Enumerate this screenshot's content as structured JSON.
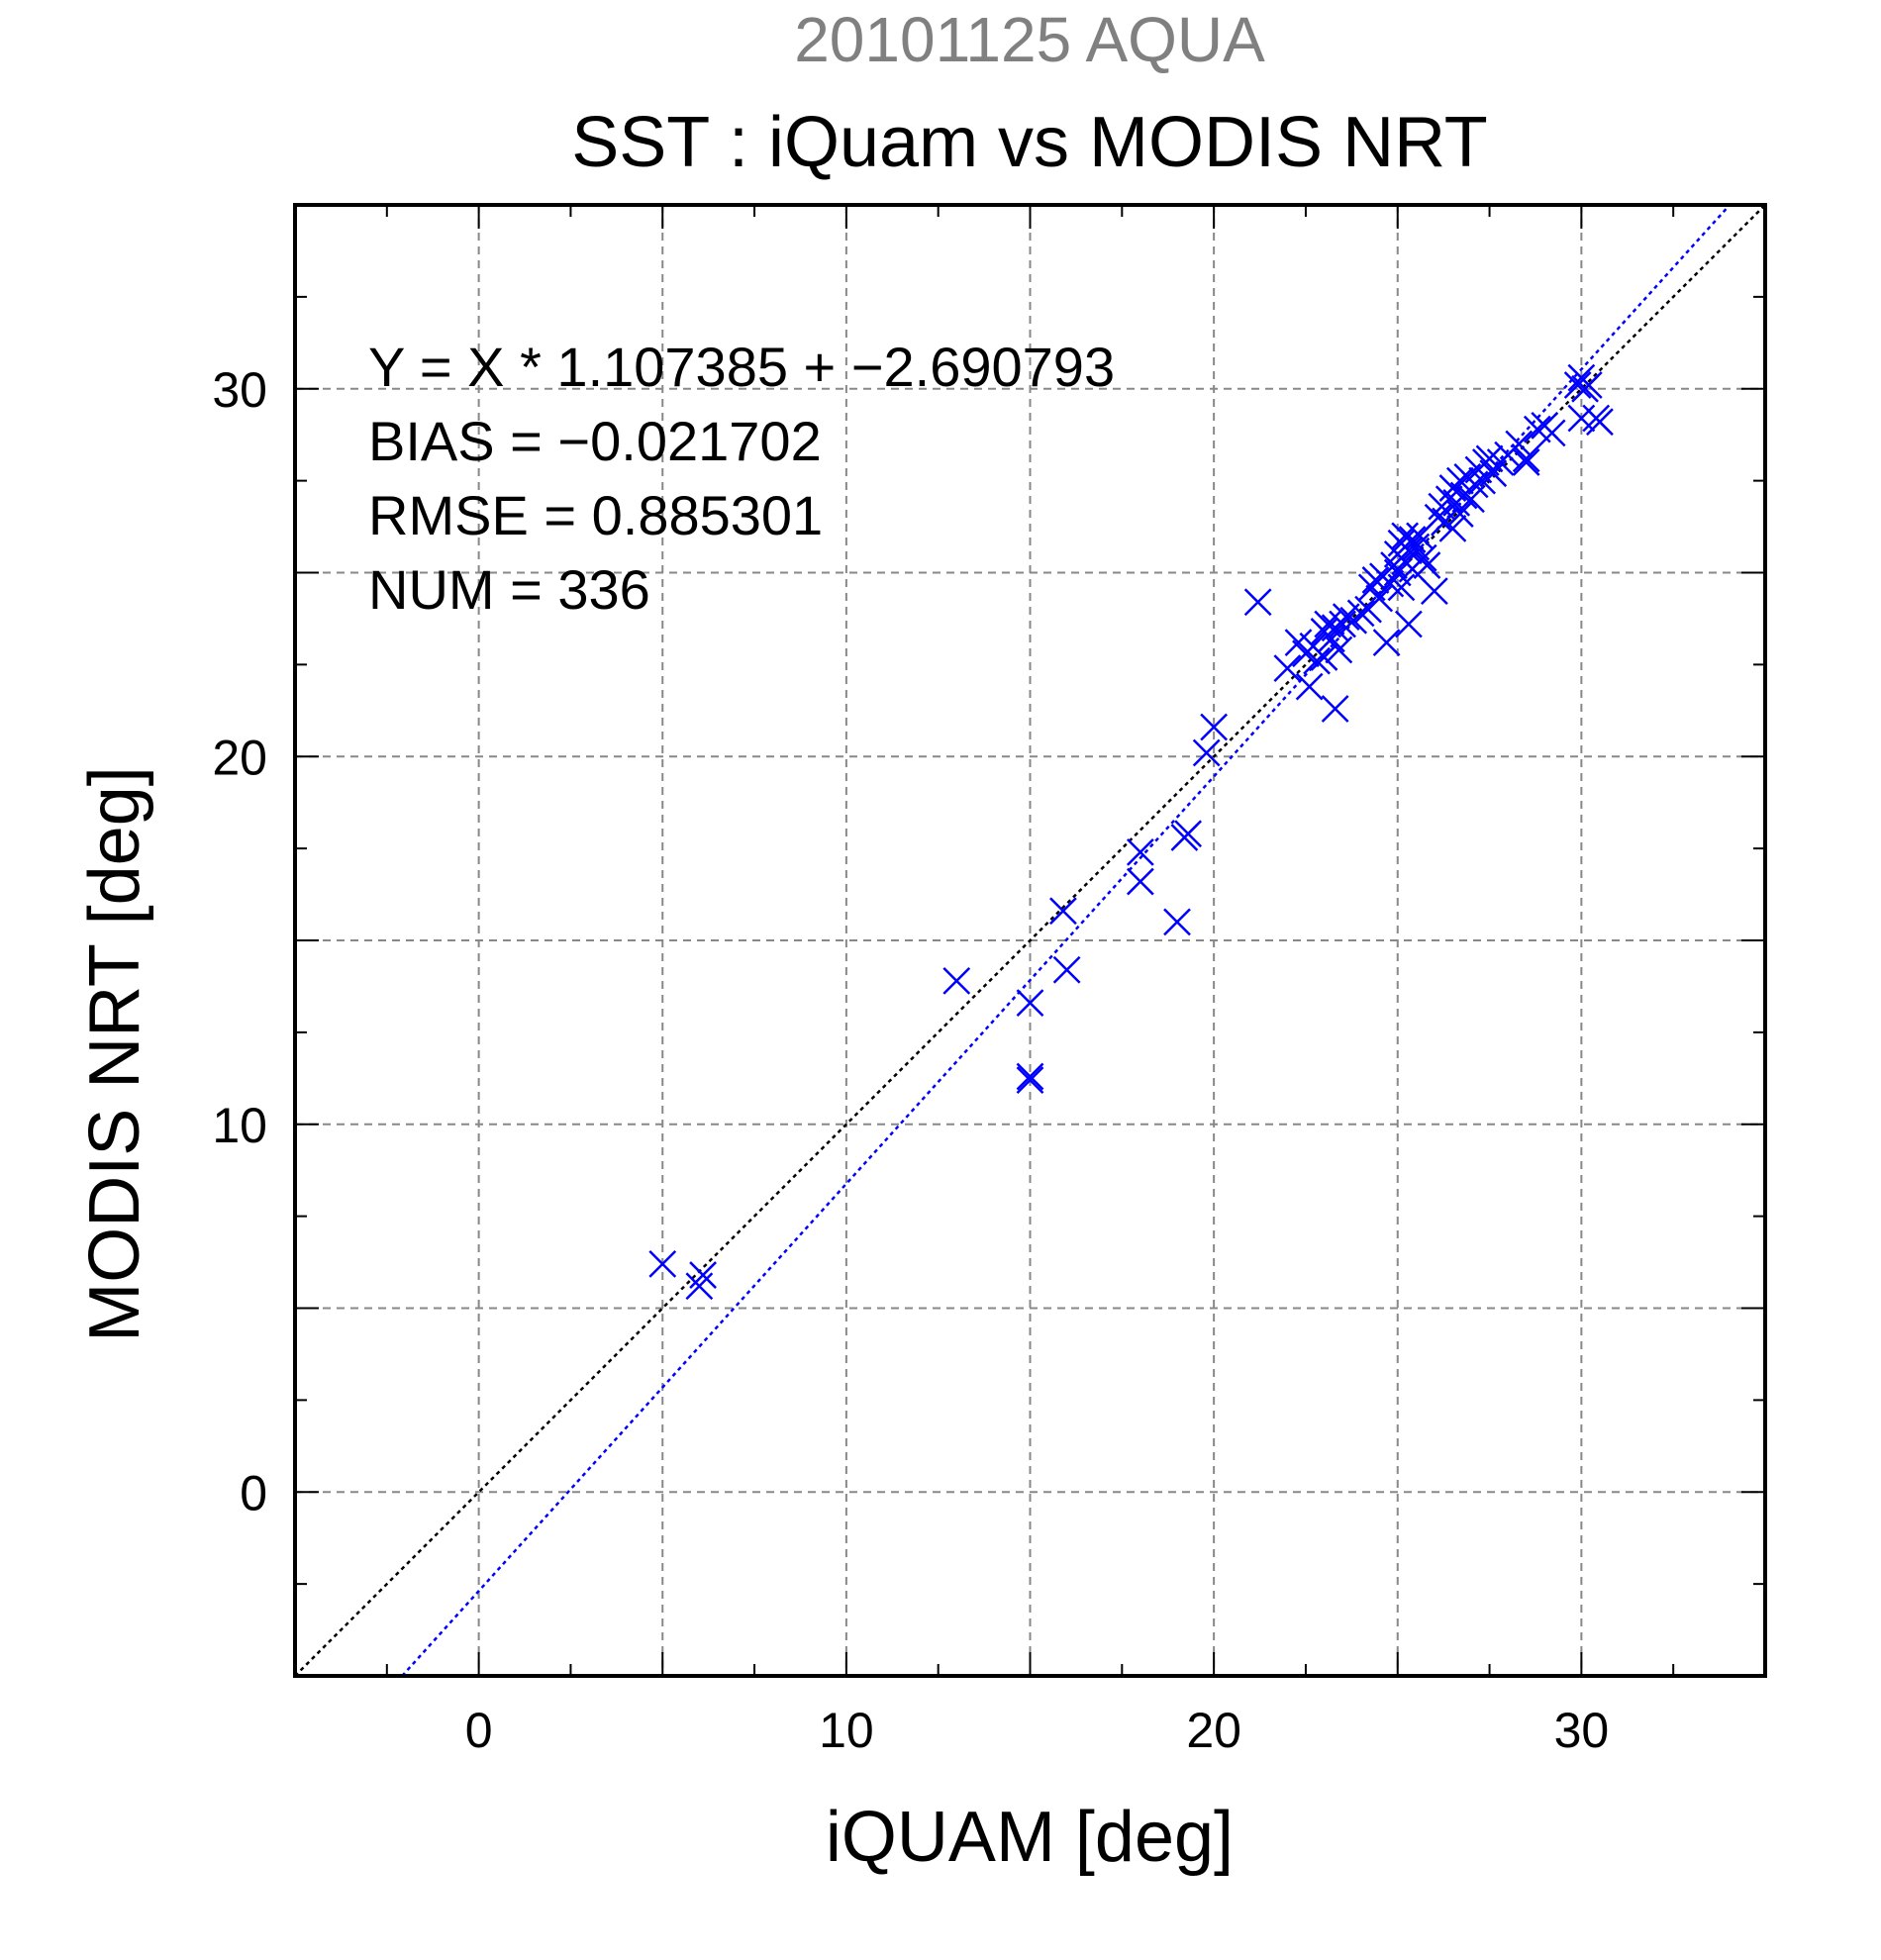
{
  "chart_data": {
    "type": "scatter",
    "title": "SST : iQuam vs MODIS NRT",
    "subtitle": "20101125 AQUA",
    "xlabel": "iQUAM [deg]",
    "ylabel": "MODIS NRT [deg]",
    "xlim": [
      -5,
      35
    ],
    "ylim": [
      -5,
      35
    ],
    "xticks": [
      0,
      10,
      20,
      30
    ],
    "yticks": [
      0,
      10,
      20,
      30
    ],
    "grid": true,
    "annotations": [
      "Y = X * 1.107385 + −2.690793",
      "BIAS = −0.021702",
      "RMSE = 0.885301",
      "NUM = 336"
    ],
    "colors": {
      "points": "#0000ff",
      "fit_line": "#0000ff",
      "identity_line": "#000000",
      "subtitle": "#808080"
    },
    "lines": [
      {
        "kind": "identity",
        "slope": 1,
        "intercept": 0
      },
      {
        "kind": "regression",
        "slope": 1.107385,
        "intercept": -2.690793
      }
    ],
    "points": [
      [
        5.0,
        6.2
      ],
      [
        6.0,
        5.6
      ],
      [
        6.1,
        5.9
      ],
      [
        13.0,
        13.9
      ],
      [
        15.0,
        13.3
      ],
      [
        15.0,
        11.2
      ],
      [
        15.0,
        11.3
      ],
      [
        15.9,
        15.8
      ],
      [
        16.0,
        14.2
      ],
      [
        18.0,
        16.6
      ],
      [
        18.0,
        17.4
      ],
      [
        19.0,
        15.5
      ],
      [
        19.2,
        17.8
      ],
      [
        19.3,
        17.9
      ],
      [
        19.8,
        20.1
      ],
      [
        20.0,
        20.8
      ],
      [
        21.2,
        24.2
      ],
      [
        22.0,
        22.4
      ],
      [
        22.3,
        23.1
      ],
      [
        22.5,
        22.8
      ],
      [
        22.6,
        21.9
      ],
      [
        22.7,
        23.0
      ],
      [
        22.8,
        22.6
      ],
      [
        23.0,
        23.4
      ],
      [
        23.0,
        22.7
      ],
      [
        23.1,
        23.6
      ],
      [
        23.2,
        23.2
      ],
      [
        23.3,
        23.5
      ],
      [
        23.3,
        21.3
      ],
      [
        23.4,
        22.9
      ],
      [
        23.5,
        23.6
      ],
      [
        23.6,
        23.8
      ],
      [
        23.8,
        23.7
      ],
      [
        24.0,
        23.9
      ],
      [
        24.2,
        24.0
      ],
      [
        24.3,
        24.6
      ],
      [
        24.4,
        24.8
      ],
      [
        24.5,
        24.3
      ],
      [
        24.6,
        24.9
      ],
      [
        24.7,
        23.1
      ],
      [
        24.8,
        24.7
      ],
      [
        24.9,
        25.2
      ],
      [
        25.0,
        25.0
      ],
      [
        25.0,
        25.5
      ],
      [
        25.1,
        25.8
      ],
      [
        25.1,
        24.6
      ],
      [
        25.2,
        25.3
      ],
      [
        25.2,
        26.0
      ],
      [
        25.3,
        25.6
      ],
      [
        25.3,
        23.6
      ],
      [
        25.4,
        25.9
      ],
      [
        25.4,
        25.1
      ],
      [
        25.5,
        25.7
      ],
      [
        25.6,
        26.0
      ],
      [
        25.7,
        25.4
      ],
      [
        25.8,
        25.2
      ],
      [
        26.0,
        24.5
      ],
      [
        26.1,
        26.5
      ],
      [
        26.2,
        26.8
      ],
      [
        26.3,
        26.4
      ],
      [
        26.4,
        27.0
      ],
      [
        26.5,
        26.2
      ],
      [
        26.5,
        27.3
      ],
      [
        26.6,
        26.9
      ],
      [
        26.7,
        27.5
      ],
      [
        26.7,
        26.6
      ],
      [
        26.8,
        27.1
      ],
      [
        26.9,
        27.6
      ],
      [
        27.0,
        27.0
      ],
      [
        27.1,
        27.4
      ],
      [
        27.2,
        27.8
      ],
      [
        27.3,
        27.5
      ],
      [
        27.4,
        28.0
      ],
      [
        27.5,
        28.1
      ],
      [
        27.6,
        27.7
      ],
      [
        27.8,
        28.0
      ],
      [
        28.0,
        28.2
      ],
      [
        28.3,
        28.5
      ],
      [
        28.5,
        28.0
      ],
      [
        28.5,
        28.1
      ],
      [
        28.8,
        28.9
      ],
      [
        29.0,
        29.0
      ],
      [
        29.2,
        28.8
      ],
      [
        29.9,
        30.1
      ],
      [
        30.0,
        30.3
      ],
      [
        30.1,
        30.0
      ],
      [
        30.2,
        30.1
      ],
      [
        30.0,
        29.2
      ],
      [
        30.4,
        29.2
      ],
      [
        30.5,
        29.1
      ]
    ]
  }
}
